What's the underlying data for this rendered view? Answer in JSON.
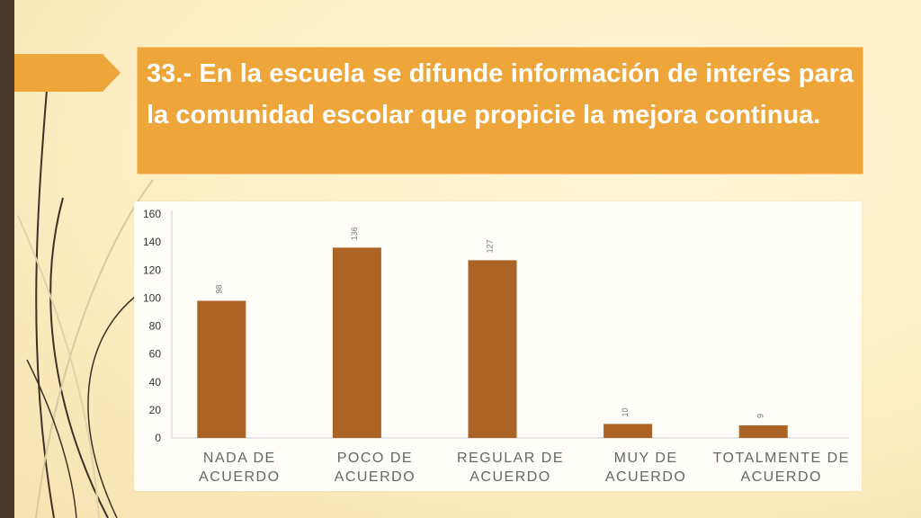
{
  "slide": {
    "title": "33.- En la escuela se difunde información de interés para la comunidad escolar que propicie la mejora continua."
  },
  "colors": {
    "accent": "#eea63a",
    "bar": "#ab6425",
    "sidebar": "#4a3a2c"
  },
  "icons": [
    "arrow-right-icon"
  ],
  "chart_data": {
    "type": "bar",
    "categories": [
      [
        "NADA DE",
        "ACUERDO"
      ],
      [
        "POCO DE",
        "ACUERDO"
      ],
      [
        "REGULAR DE",
        "ACUERDO"
      ],
      [
        "MUY DE",
        "ACUERDO"
      ],
      [
        "TOTALMENTE DE",
        "ACUERDO"
      ]
    ],
    "values": [
      98,
      136,
      127,
      10,
      9
    ],
    "ylim": [
      0,
      160
    ],
    "yticks": [
      0,
      20,
      40,
      60,
      80,
      100,
      120,
      140,
      160
    ],
    "grid": false,
    "legend": "none"
  }
}
